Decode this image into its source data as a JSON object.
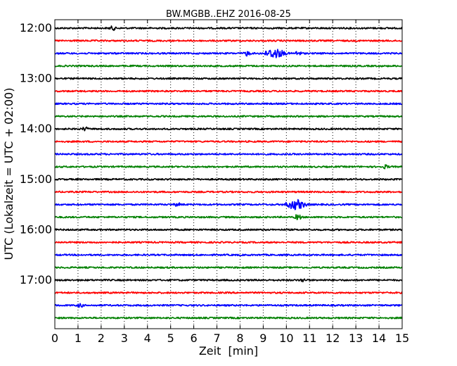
{
  "chart_data": {
    "type": "line",
    "title": "BW.MGBB..EHZ 2016-08-25",
    "xlabel": "Zeit  [min]",
    "ylabel": "UTC (Lokalzeit = UTC + 02:00)",
    "xlim": [
      0,
      15
    ],
    "x_ticks": [
      "0",
      "1",
      "2",
      "3",
      "4",
      "5",
      "6",
      "7",
      "8",
      "9",
      "10",
      "11",
      "12",
      "13",
      "14",
      "15"
    ],
    "y_ticks": [
      "12:00",
      "13:00",
      "14:00",
      "15:00",
      "16:00",
      "17:00"
    ],
    "grid": "vertical dotted at each minute",
    "trace_colors": [
      "#000000",
      "#ff0000",
      "#0000ff",
      "#008000"
    ],
    "traces": [
      {
        "start": "12:00",
        "color": "#000000",
        "bursts": [
          {
            "t": 2.5,
            "amp": 0.45
          }
        ]
      },
      {
        "start": "12:15",
        "color": "#ff0000",
        "bursts": []
      },
      {
        "start": "12:30",
        "color": "#0000ff",
        "bursts": [
          {
            "t": 8.3,
            "amp": 0.6
          },
          {
            "t": 9.5,
            "amp": 1.4
          },
          {
            "t": 10.5,
            "amp": 0.5
          }
        ]
      },
      {
        "start": "12:45",
        "color": "#008000",
        "bursts": []
      },
      {
        "start": "13:00",
        "color": "#000000",
        "bursts": []
      },
      {
        "start": "13:15",
        "color": "#ff0000",
        "bursts": []
      },
      {
        "start": "13:30",
        "color": "#0000ff",
        "bursts": []
      },
      {
        "start": "13:45",
        "color": "#008000",
        "bursts": []
      },
      {
        "start": "14:00",
        "color": "#000000",
        "bursts": [
          {
            "t": 1.3,
            "amp": 0.4
          }
        ]
      },
      {
        "start": "14:15",
        "color": "#ff0000",
        "bursts": []
      },
      {
        "start": "14:30",
        "color": "#0000ff",
        "bursts": []
      },
      {
        "start": "14:45",
        "color": "#008000",
        "bursts": [
          {
            "t": 14.3,
            "amp": 0.4
          }
        ]
      },
      {
        "start": "15:00",
        "color": "#000000",
        "bursts": []
      },
      {
        "start": "15:15",
        "color": "#ff0000",
        "bursts": []
      },
      {
        "start": "15:30",
        "color": "#0000ff",
        "bursts": [
          {
            "t": 5.3,
            "amp": 0.35
          },
          {
            "t": 10.4,
            "amp": 1.4
          }
        ]
      },
      {
        "start": "15:45",
        "color": "#008000",
        "bursts": [
          {
            "t": 10.5,
            "amp": 0.7
          }
        ]
      },
      {
        "start": "16:00",
        "color": "#000000",
        "bursts": []
      },
      {
        "start": "16:15",
        "color": "#ff0000",
        "bursts": []
      },
      {
        "start": "16:30",
        "color": "#0000ff",
        "bursts": []
      },
      {
        "start": "16:45",
        "color": "#008000",
        "bursts": []
      },
      {
        "start": "17:00",
        "color": "#000000",
        "bursts": [
          {
            "t": 10.7,
            "amp": 0.3
          }
        ]
      },
      {
        "start": "17:15",
        "color": "#ff0000",
        "bursts": []
      },
      {
        "start": "17:30",
        "color": "#0000ff",
        "bursts": [
          {
            "t": 1.1,
            "amp": 0.4
          }
        ]
      },
      {
        "start": "17:45",
        "color": "#008000",
        "bursts": []
      }
    ]
  }
}
